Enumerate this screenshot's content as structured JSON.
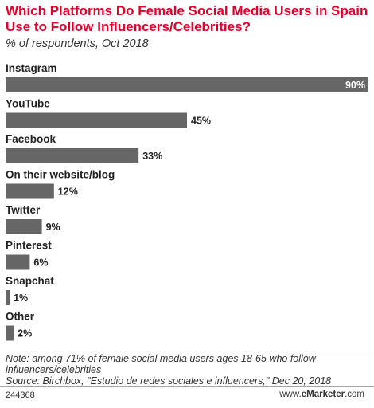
{
  "chart_data": {
    "type": "bar",
    "orientation": "horizontal",
    "title": "Which Platforms Do Female Social Media Users in Spain Use to Follow Influencers/Celebrities?",
    "subtitle": "% of respondents, Oct 2018",
    "categories": [
      "Instagram",
      "YouTube",
      "Facebook",
      "On their website/blog",
      "Twitter",
      "Pinterest",
      "Snapchat",
      "Other"
    ],
    "values": [
      90,
      45,
      33,
      12,
      9,
      6,
      1,
      2
    ],
    "value_labels": [
      "90%",
      "45%",
      "33%",
      "12%",
      "9%",
      "6%",
      "1%",
      "2%"
    ],
    "xlim": [
      0,
      90
    ],
    "bar_color": "#666666",
    "label_inside_first": true
  },
  "footnote": {
    "note": "Note: among 71% of female social media users ages 18-65 who follow influencers/celebrities",
    "source": "Source: Birchbox, \"Estudio de redes sociales e influencers,\" Dec 20, 2018"
  },
  "chart_id": "244368",
  "brand": {
    "prefix": "www.",
    "name": "eMarketer",
    "suffix": ".com"
  }
}
